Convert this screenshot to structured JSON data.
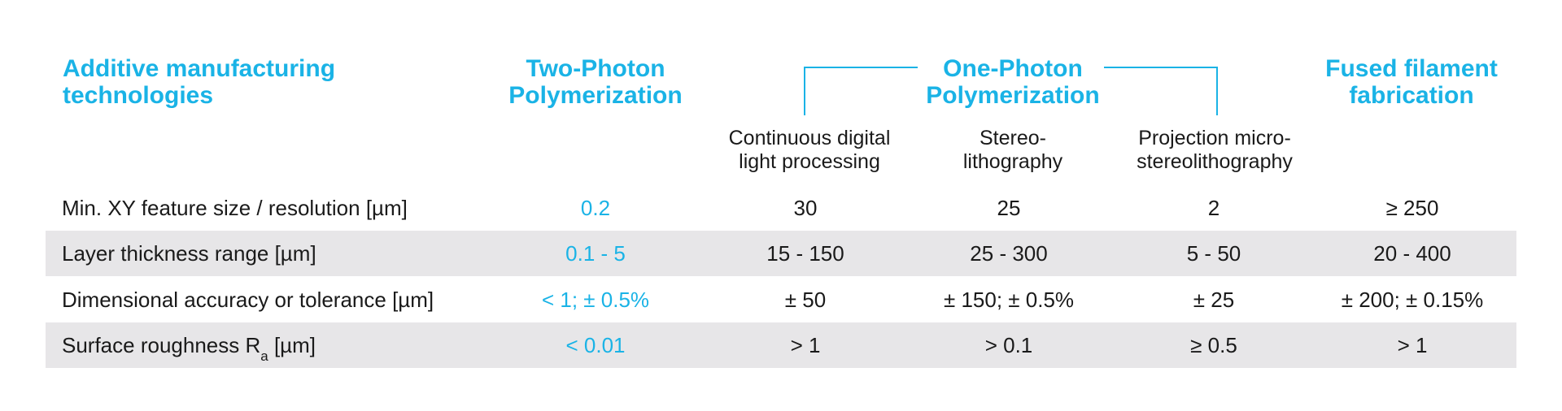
{
  "header": {
    "technologies": [
      "Additive manufacturing",
      "technologies"
    ],
    "two_photon": [
      "Two-Photon",
      "Polymerization"
    ],
    "one_photon": [
      "One-Photon",
      "Polymerization"
    ],
    "fused": [
      "Fused filament",
      "fabrication"
    ]
  },
  "subheaders": {
    "cdlp": [
      "Continuous digital",
      "light processing"
    ],
    "stereo": [
      "Stereo-",
      "lithography"
    ],
    "pmsl": [
      "Projection micro-",
      "stereolithography"
    ]
  },
  "rows": [
    {
      "label": "Min. XY feature size / resolution [µm]",
      "values": [
        "0.2",
        "30",
        "25",
        "2",
        "≥ 250"
      ]
    },
    {
      "label": "Layer thickness range [µm]",
      "values": [
        "0.1 - 5",
        "15 - 150",
        "25 - 300",
        "5 - 50",
        "20 - 400"
      ]
    },
    {
      "label": "Dimensional accuracy or tolerance [µm]",
      "values": [
        "< 1; ± 0.5%",
        "± 50",
        "± 150; ± 0.5%",
        "± 25",
        "± 200; ± 0.15%"
      ]
    },
    {
      "label_main": "Surface roughness R",
      "label_sub": "a",
      "label_unit": " [µm]",
      "values": [
        "< 0.01",
        "> 1",
        "> 0.1",
        "≥ 0.5",
        "> 1"
      ]
    }
  ],
  "colors": {
    "accent": "#1ab3e6",
    "row_shade": "#e7e6e8",
    "text": "#1a1a1a"
  }
}
